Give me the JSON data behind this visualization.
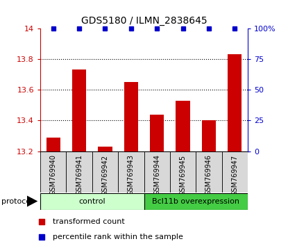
{
  "title": "GDS5180 / ILMN_2838645",
  "samples": [
    "GSM769940",
    "GSM769941",
    "GSM769942",
    "GSM769943",
    "GSM769944",
    "GSM769945",
    "GSM769946",
    "GSM769947"
  ],
  "red_values": [
    13.29,
    13.73,
    13.23,
    13.65,
    13.44,
    13.53,
    13.4,
    13.83
  ],
  "blue_values": [
    100,
    100,
    100,
    100,
    100,
    100,
    100,
    100
  ],
  "ylim_left": [
    13.2,
    14.0
  ],
  "ylim_right": [
    0,
    100
  ],
  "yticks_left": [
    13.2,
    13.4,
    13.6,
    13.8,
    14.0
  ],
  "ytick_labels_left": [
    "13.2",
    "13.4",
    "13.6",
    "13.8",
    "14"
  ],
  "yticks_right": [
    0,
    25,
    50,
    75,
    100
  ],
  "ytick_labels_right": [
    "0",
    "25",
    "50",
    "75",
    "100%"
  ],
  "red_color": "#cc0000",
  "blue_color": "#0000cc",
  "bar_bottom": 13.2,
  "dotted_lines": [
    13.4,
    13.6,
    13.8
  ],
  "groups": [
    {
      "label": "control",
      "start": 0,
      "end": 4,
      "color": "#ccffcc"
    },
    {
      "label": "Bcl11b overexpression",
      "start": 4,
      "end": 8,
      "color": "#44cc44"
    }
  ],
  "protocol_label": "protocol",
  "legend_red": "transformed count",
  "legend_blue": "percentile rank within the sample",
  "sample_box_color": "#d8d8d8",
  "title_fontsize": 10,
  "tick_fontsize": 8,
  "sample_fontsize": 7,
  "group_fontsize": 8,
  "legend_fontsize": 8
}
